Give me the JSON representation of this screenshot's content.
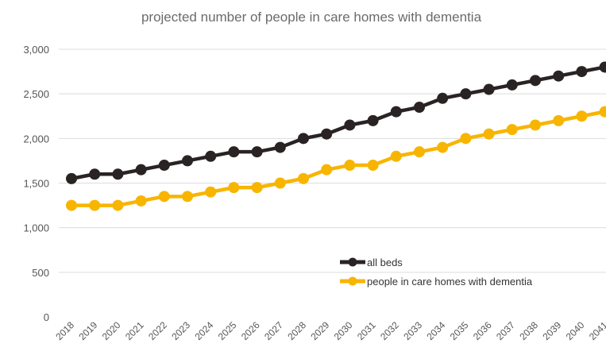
{
  "chart_data": {
    "type": "line",
    "title": "projected number of people in care homes with dementia",
    "xlabel": "",
    "ylabel": "",
    "ylim": [
      0,
      3000
    ],
    "yticks": [
      0,
      500,
      1000,
      1500,
      2000,
      2500,
      3000
    ],
    "ytick_labels": [
      "0",
      "500",
      "1,000",
      "1,500",
      "2,000",
      "2,500",
      "3,000"
    ],
    "grid": true,
    "legend_position": "bottom-right",
    "categories": [
      "2018",
      "2019",
      "2020",
      "2021",
      "2022",
      "2023",
      "2024",
      "2025",
      "2026",
      "2027",
      "2028",
      "2029",
      "2030",
      "2031",
      "2032",
      "2033",
      "2034",
      "2035",
      "2036",
      "2037",
      "2038",
      "2039",
      "2040",
      "2041"
    ],
    "series": [
      {
        "name": "all beds",
        "color": "#2a2323",
        "values": [
          1550,
          1600,
          1600,
          1650,
          1700,
          1750,
          1800,
          1850,
          1850,
          1900,
          2000,
          2050,
          2150,
          2200,
          2300,
          2350,
          2450,
          2500,
          2550,
          2600,
          2650,
          2700,
          2750,
          2800
        ]
      },
      {
        "name": "people in care homes with dementia",
        "color": "#f7b500",
        "values": [
          1250,
          1250,
          1250,
          1300,
          1350,
          1350,
          1400,
          1450,
          1450,
          1500,
          1550,
          1650,
          1700,
          1700,
          1800,
          1850,
          1900,
          2000,
          2050,
          2100,
          2150,
          2200,
          2250,
          2300
        ]
      }
    ]
  }
}
